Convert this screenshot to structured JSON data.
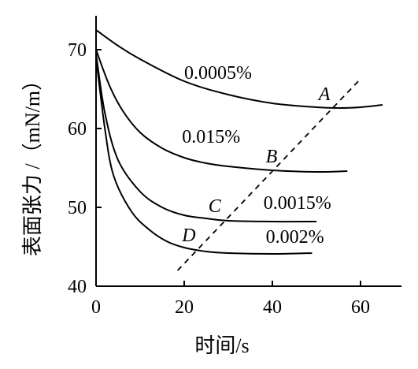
{
  "chart_data": {
    "type": "line",
    "xlabel": "时间/s",
    "ylabel": "表面张力 /（mN/m）",
    "xlim": [
      0,
      70
    ],
    "ylim": [
      40,
      76
    ],
    "xticks": [
      0,
      20,
      40,
      60
    ],
    "yticks": [
      40,
      50,
      60,
      70
    ],
    "grid": false,
    "series": [
      {
        "name": "0.0005%",
        "line_style": "solid",
        "x": [
          0,
          5,
          10,
          20,
          30,
          40,
          50,
          55,
          60,
          65
        ],
        "y": [
          72.5,
          70.5,
          68.8,
          66.0,
          64.3,
          63.2,
          62.7,
          62.6,
          62.7,
          63.0
        ]
      },
      {
        "name": "0.015%",
        "line_style": "solid",
        "x": [
          0,
          3,
          6,
          10,
          15,
          20,
          25,
          30,
          40,
          50,
          57
        ],
        "y": [
          70.0,
          65.5,
          62.3,
          59.5,
          57.5,
          56.3,
          55.6,
          55.2,
          54.7,
          54.5,
          54.6
        ]
      },
      {
        "name": "0.0015%",
        "line_style": "solid",
        "x": [
          0,
          2,
          5,
          10,
          15,
          20,
          25,
          30,
          40,
          50
        ],
        "y": [
          69.5,
          62.0,
          56.0,
          52.0,
          50.0,
          49.0,
          48.6,
          48.3,
          48.2,
          48.2
        ]
      },
      {
        "name": "0.002%",
        "line_style": "solid",
        "x": [
          0,
          2,
          4,
          8,
          12,
          16,
          20,
          25,
          30,
          40,
          49
        ],
        "y": [
          69.0,
          60.0,
          54.0,
          49.5,
          47.2,
          45.7,
          44.9,
          44.4,
          44.2,
          44.1,
          44.2
        ]
      },
      {
        "name": "",
        "line_style": "dashed",
        "x": [
          18.5,
          60
        ],
        "y": [
          42.0,
          66.3
        ]
      }
    ],
    "series_labels": [
      {
        "text": "0.0005%",
        "x": 20,
        "y": 66.3
      },
      {
        "text": "0.015%",
        "x": 19.5,
        "y": 58.2
      },
      {
        "text": "0.0015%",
        "x": 38,
        "y": 49.8
      },
      {
        "text": "0.002%",
        "x": 38.5,
        "y": 45.5
      }
    ],
    "point_labels": [
      {
        "text": "A",
        "x": 50.5,
        "y": 63.6
      },
      {
        "text": "B",
        "x": 38.5,
        "y": 55.7
      },
      {
        "text": "C",
        "x": 25.5,
        "y": 49.4
      },
      {
        "text": "D",
        "x": 19.5,
        "y": 45.7
      }
    ]
  }
}
